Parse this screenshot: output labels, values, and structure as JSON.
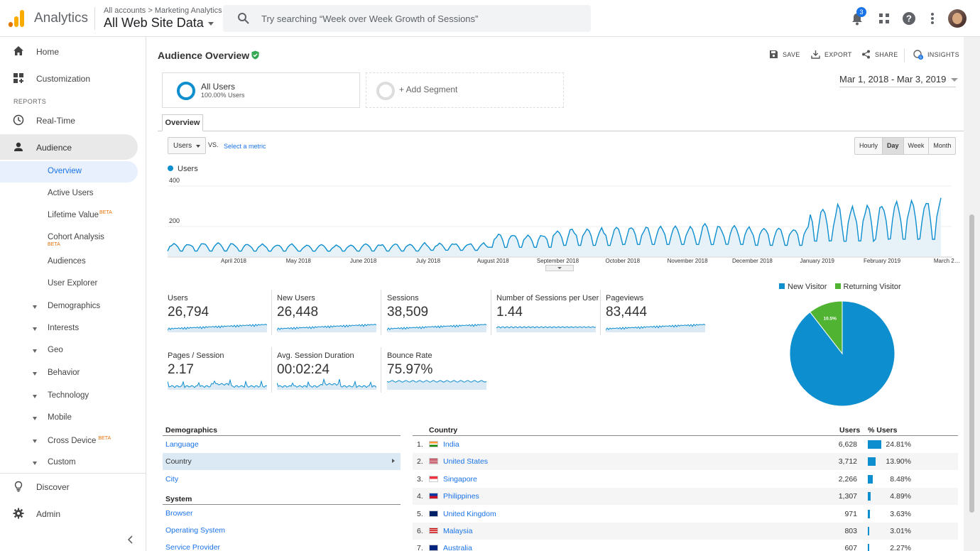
{
  "header": {
    "app_name": "Analytics",
    "breadcrumb": "All accounts > Marketing Analytics",
    "property": "All Web Site Data",
    "search_placeholder": "Try searching “Week over Week Growth of Sessions”",
    "notification_count": "3",
    "icons": [
      "search-icon",
      "bell-icon",
      "apps-grid-icon",
      "help-icon",
      "more-vert-icon",
      "avatar"
    ]
  },
  "sidebar": {
    "home": "Home",
    "customization": "Customization",
    "reports_label": "REPORTS",
    "realtime": "Real-Time",
    "audience": "Audience",
    "audience_items": {
      "overview": "Overview",
      "active_users": "Active Users",
      "lifetime_value": "Lifetime Value",
      "cohort_analysis": "Cohort Analysis",
      "audiences": "Audiences",
      "user_explorer": "User Explorer",
      "demographics": "Demographics",
      "interests": "Interests",
      "geo": "Geo",
      "behavior": "Behavior",
      "technology": "Technology",
      "mobile": "Mobile",
      "cross_device": "Cross Device",
      "custom": "Custom"
    },
    "beta": "BETA",
    "discover": "Discover",
    "admin": "Admin"
  },
  "page": {
    "title": "Audience Overview",
    "actions": {
      "save": "SAVE",
      "export": "EXPORT",
      "share": "SHARE",
      "insights": "INSIGHTS"
    },
    "segment_all": "All Users",
    "segment_pct": "100.00% Users",
    "add_segment": "+ Add Segment",
    "date_range": "Mar 1, 2018 - Mar 3, 2019",
    "tab_overview": "Overview",
    "metric_select": "Users",
    "vs": "VS.",
    "select_metric": "Select a metric",
    "granularity": {
      "hourly": "Hourly",
      "day": "Day",
      "week": "Week",
      "month": "Month",
      "selected": "Day"
    }
  },
  "colors": {
    "accent": "#0d8ecf",
    "returning": "#50b432",
    "link": "#1a73e8",
    "logo_orange": "#f9ab00",
    "logo_dark": "#e37400"
  },
  "chart_data": {
    "type": "area",
    "series_name": "Users",
    "yticks": [
      "400",
      "200"
    ],
    "ylim": [
      0,
      400
    ],
    "xticks": [
      "April 2018",
      "May 2018",
      "June 2018",
      "July 2018",
      "August 2018",
      "September 2018",
      "October 2018",
      "November 2018",
      "December 2018",
      "January 2019",
      "February 2019",
      "March 2…"
    ],
    "monthly_levels": [
      {
        "month": "Mar 2018",
        "low": 20,
        "high": 65
      },
      {
        "month": "Apr 2018",
        "low": 20,
        "high": 60
      },
      {
        "month": "May 2018",
        "low": 20,
        "high": 55
      },
      {
        "month": "Jun 2018",
        "low": 20,
        "high": 60
      },
      {
        "month": "Jul 2018",
        "low": 25,
        "high": 65
      },
      {
        "month": "Aug 2018",
        "low": 40,
        "high": 120
      },
      {
        "month": "Sep 2018",
        "low": 50,
        "high": 150
      },
      {
        "month": "Oct 2018",
        "low": 55,
        "high": 160
      },
      {
        "month": "Nov 2018",
        "low": 55,
        "high": 165
      },
      {
        "month": "Dec 2018",
        "low": 50,
        "high": 160
      },
      {
        "month": "Jan 2019",
        "low": 70,
        "high": 270
      },
      {
        "month": "Feb 2019",
        "low": 80,
        "high": 305
      }
    ]
  },
  "scorecards": [
    {
      "label": "Users",
      "value": "26,794"
    },
    {
      "label": "New Users",
      "value": "26,448"
    },
    {
      "label": "Sessions",
      "value": "38,509"
    },
    {
      "label": "Number of Sessions per User",
      "value": "1.44"
    },
    {
      "label": "Pageviews",
      "value": "83,444"
    },
    {
      "label": "Pages / Session",
      "value": "2.17"
    },
    {
      "label": "Avg. Session Duration",
      "value": "00:02:24"
    },
    {
      "label": "Bounce Rate",
      "value": "75.97%"
    }
  ],
  "pie": {
    "legend": [
      "New Visitor",
      "Returning Visitor"
    ],
    "values": [
      89.5,
      10.5
    ],
    "labels": [
      "89.5%",
      "10.5%"
    ]
  },
  "demographics": {
    "heading": "Demographics",
    "items": [
      "Language",
      "Country",
      "City"
    ],
    "selected": "Country",
    "system_heading": "System",
    "system_items": [
      "Browser",
      "Operating System",
      "Service Provider"
    ]
  },
  "country_table": {
    "col_country": "Country",
    "col_users": "Users",
    "col_pct": "% Users",
    "rows": [
      {
        "rank": "1.",
        "country": "India",
        "users": "6,628",
        "pct": "24.81%",
        "share": 24.81
      },
      {
        "rank": "2.",
        "country": "United States",
        "users": "3,712",
        "pct": "13.90%",
        "share": 13.9
      },
      {
        "rank": "3.",
        "country": "Singapore",
        "users": "2,266",
        "pct": "8.48%",
        "share": 8.48
      },
      {
        "rank": "4.",
        "country": "Philippines",
        "users": "1,307",
        "pct": "4.89%",
        "share": 4.89
      },
      {
        "rank": "5.",
        "country": "United Kingdom",
        "users": "971",
        "pct": "3.63%",
        "share": 3.63
      },
      {
        "rank": "6.",
        "country": "Malaysia",
        "users": "803",
        "pct": "3.01%",
        "share": 3.01
      },
      {
        "rank": "7.",
        "country": "Australia",
        "users": "607",
        "pct": "2.27%",
        "share": 2.27
      }
    ]
  }
}
